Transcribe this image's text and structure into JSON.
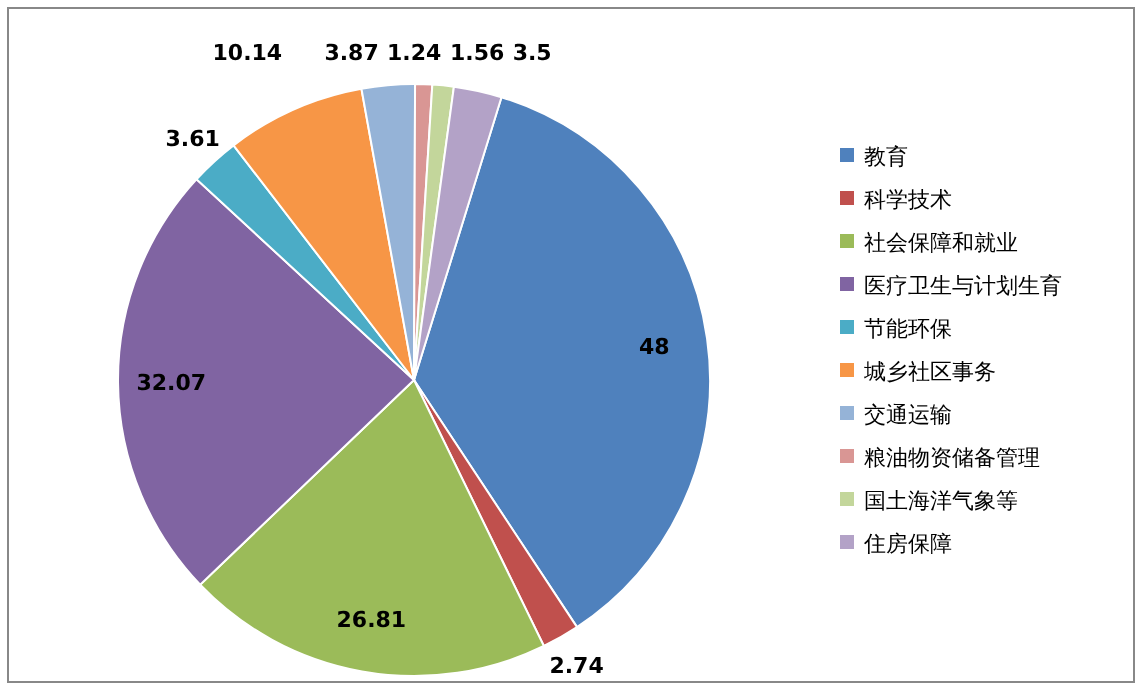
{
  "chart_data": {
    "type": "pie",
    "categories": [
      "教育",
      "科学技术",
      "社会保障和就业",
      "医疗卫生与计划生育",
      "节能环保",
      "城乡社区事务",
      "交通运输",
      "粮油物资储备管理",
      "国土海洋气象等",
      "住房保障"
    ],
    "values": [
      48,
      2.74,
      26.81,
      32.07,
      3.61,
      10.14,
      3.87,
      1.24,
      1.56,
      3.5
    ],
    "colors": [
      "#4f81bd",
      "#c0504d",
      "#9bbb59",
      "#8064a2",
      "#4bacc6",
      "#f79646",
      "#95b3d7",
      "#d99694",
      "#c3d69b",
      "#b3a2c7"
    ],
    "data_labels": true,
    "legend": "right"
  }
}
